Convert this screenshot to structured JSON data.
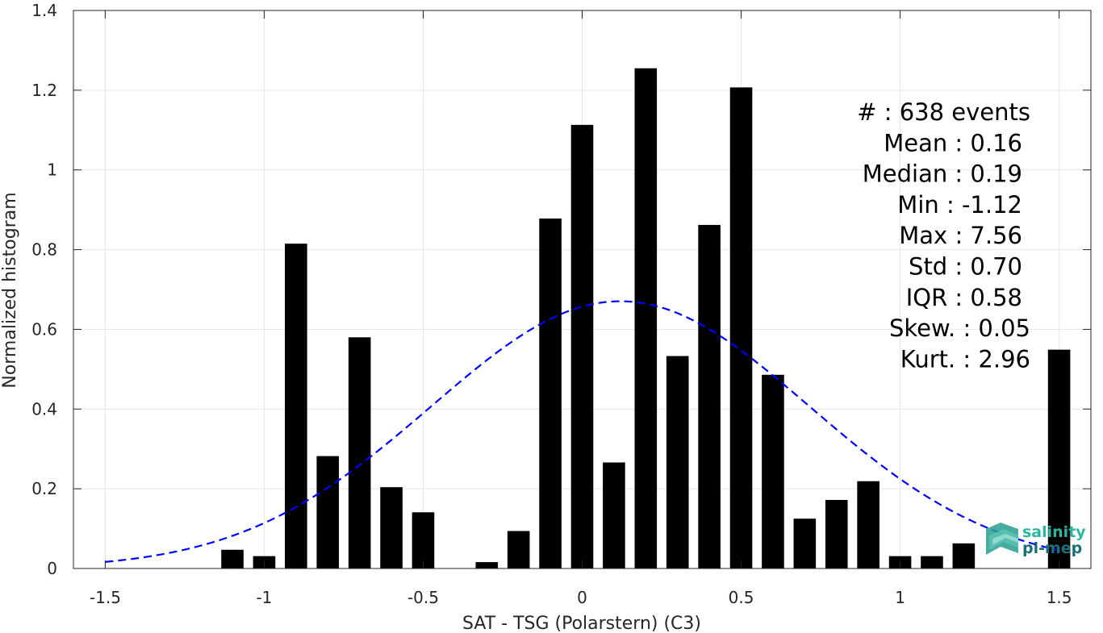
{
  "chart_data": {
    "type": "bar",
    "xlabel": "SAT - TSG (Polarstern) (C3)",
    "ylabel": "Normalized histogram",
    "xlim": [
      -1.6,
      1.6
    ],
    "ylim": [
      0,
      1.4
    ],
    "grid": true,
    "x_ticks": [
      -1.5,
      -1,
      -0.5,
      0,
      0.5,
      1,
      1.5
    ],
    "x_tick_labels": [
      "-1.5",
      "-1",
      "-0.5",
      "0",
      "0.5",
      "1",
      "1.5"
    ],
    "y_ticks": [
      0,
      0.2,
      0.4,
      0.6,
      0.8,
      1,
      1.2,
      1.4
    ],
    "y_tick_labels": [
      "0",
      "0.2",
      "0.4",
      "0.6",
      "0.8",
      "1",
      "1.2",
      "1.4"
    ],
    "bin_width": 0.1,
    "x": [
      -1.1,
      -1.0,
      -0.9,
      -0.8,
      -0.7,
      -0.6,
      -0.5,
      -0.4,
      -0.3,
      -0.2,
      -0.1,
      0.0,
      0.1,
      0.2,
      0.3,
      0.4,
      0.5,
      0.6,
      0.7,
      0.8,
      0.9,
      1.0,
      1.1,
      1.2,
      1.3,
      1.4,
      1.5
    ],
    "values": [
      0.047,
      0.031,
      0.815,
      0.282,
      0.58,
      0.204,
      0.141,
      0.0,
      0.016,
      0.094,
      0.878,
      1.113,
      0.266,
      1.255,
      0.533,
      0.862,
      1.207,
      0.486,
      0.125,
      0.172,
      0.219,
      0.031,
      0.031,
      0.063,
      0.0,
      0.0,
      0.549
    ],
    "bar_color": "#000000",
    "fit_curve": {
      "type": "gaussian",
      "mean": 0.12,
      "std": 0.595,
      "style": "dashed",
      "color": "#0000ff",
      "x_range": [
        -1.5,
        1.5
      ]
    },
    "annotations": [
      "#  : 638 events",
      "Mean : 0.16",
      "Median : 0.19",
      "Min : -1.12",
      "Max : 7.56",
      "Std : 0.70",
      "IQR : 0.58",
      "Skew. : 0.05",
      "Kurt. : 2.96"
    ]
  },
  "logo": {
    "line1": "salinity",
    "line2": "pi-mep",
    "color1": "#2ab7a0",
    "color2": "#1a6f78"
  }
}
